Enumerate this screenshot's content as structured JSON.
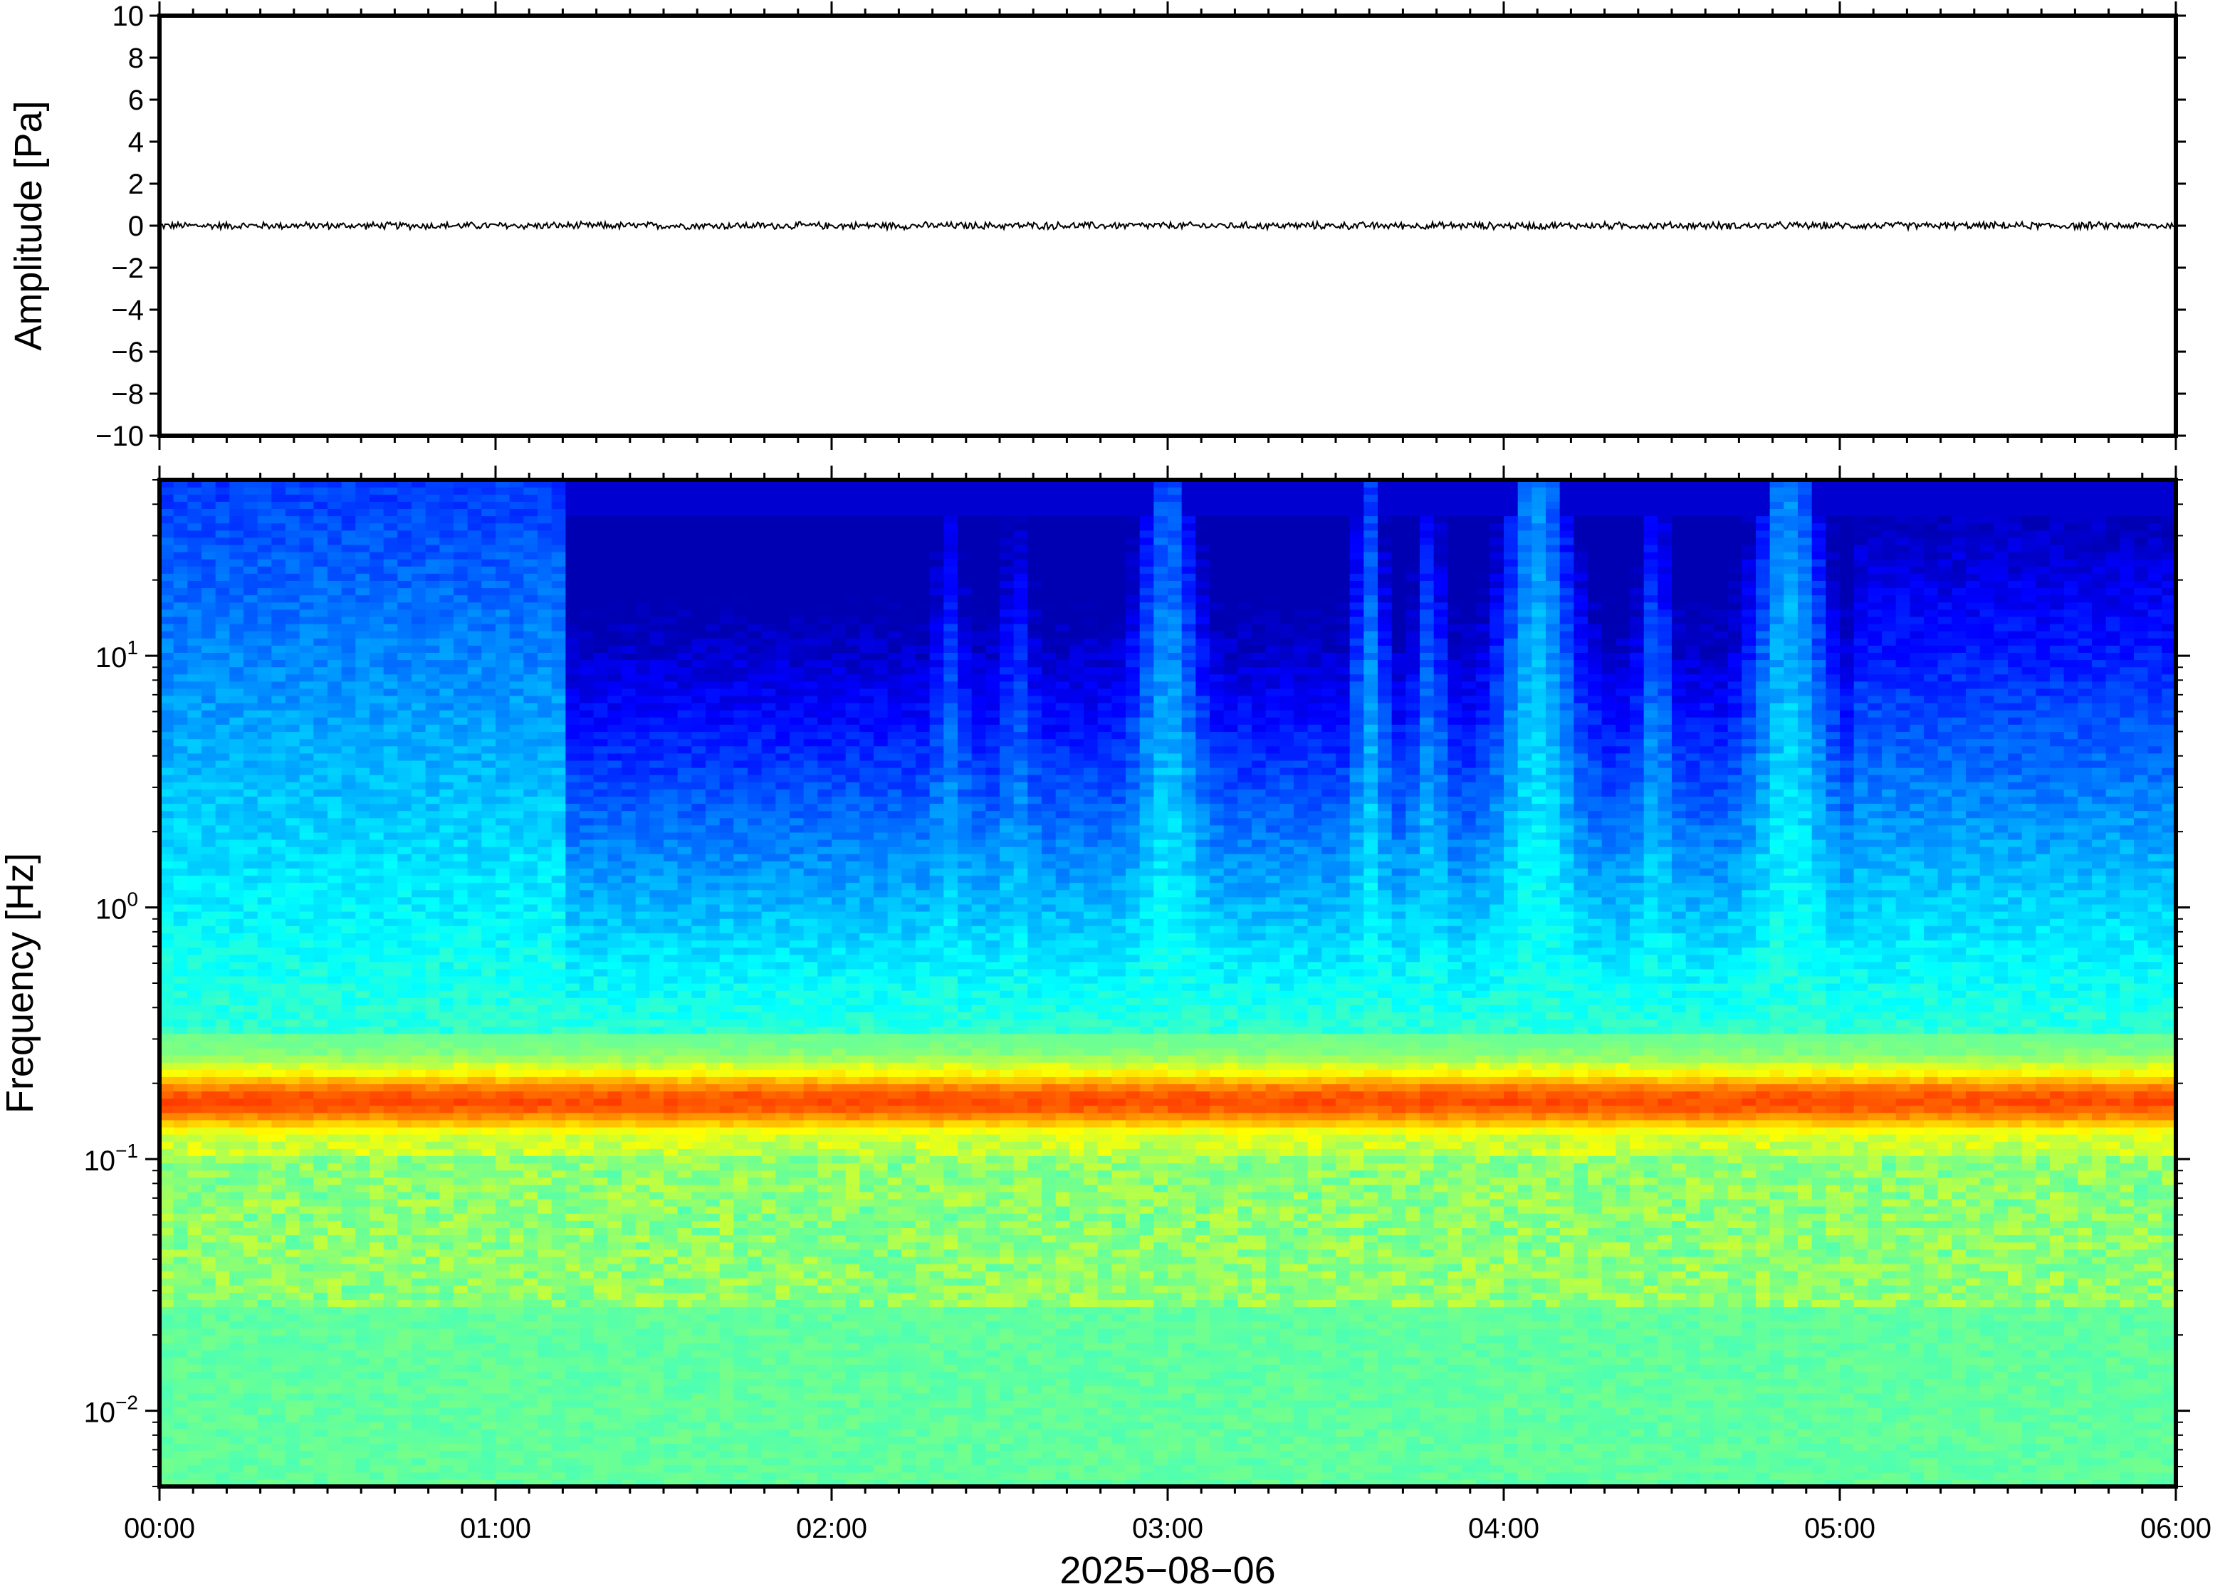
{
  "chart_data": [
    {
      "type": "line",
      "panel": "waveform",
      "ylabel": "Amplitude [Pa]",
      "ylim": [
        -10,
        10
      ],
      "yticks": [
        10,
        8,
        6,
        4,
        2,
        0,
        -2,
        -4,
        -6,
        -8,
        -10
      ],
      "ytick_labels": [
        "10",
        "8",
        "6",
        "4",
        "2",
        "0",
        "−2",
        "−4",
        "−6",
        "−8",
        "−10"
      ],
      "xlim": [
        "00:00",
        "06:00"
      ],
      "series": [
        {
          "description_level": "near-zero noise trace",
          "amplitude_range": [
            -0.2,
            0.2
          ],
          "color": "#000000"
        }
      ],
      "grid": false
    },
    {
      "type": "heatmap",
      "panel": "spectrogram",
      "ylabel": "Frequency [Hz]",
      "yscale": "log",
      "ylim": [
        0.005,
        50
      ],
      "yticks": [
        10,
        1,
        0.1,
        0.01
      ],
      "ytick_labels": [
        {
          "base": "10",
          "exp": "1"
        },
        {
          "base": "10",
          "exp": "0"
        },
        {
          "base": "10",
          "exp": "−1"
        },
        {
          "base": "10",
          "exp": "−2"
        }
      ],
      "xlim": [
        "00:00",
        "06:00"
      ],
      "xticks": [
        "00:00",
        "01:00",
        "02:00",
        "03:00",
        "04:00",
        "05:00",
        "06:00"
      ],
      "xlabel": "2025−08−06",
      "colormap": "jet",
      "colors": {
        "low": "#00007f",
        "mid": "#3fbfff",
        "band": "#ffa040"
      },
      "dominant_band_hz": [
        0.12,
        0.22
      ],
      "grid": false
    }
  ]
}
